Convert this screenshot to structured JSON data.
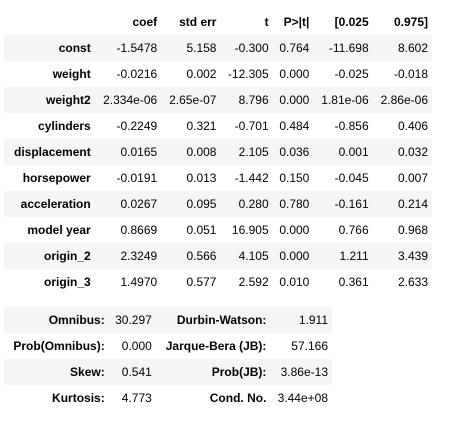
{
  "coef_table": {
    "headers": [
      "",
      "coef",
      "std err",
      "t",
      "P>|t|",
      "[0.025",
      "0.975]"
    ],
    "rows": [
      {
        "name": "const",
        "coef": "-1.5478",
        "std_err": "5.158",
        "t": "-0.300",
        "p": "0.764",
        "ci_low": "-11.698",
        "ci_high": "8.602"
      },
      {
        "name": "weight",
        "coef": "-0.0216",
        "std_err": "0.002",
        "t": "-12.305",
        "p": "0.000",
        "ci_low": "-0.025",
        "ci_high": "-0.018"
      },
      {
        "name": "weight2",
        "coef": "2.334e-06",
        "std_err": "2.65e-07",
        "t": "8.796",
        "p": "0.000",
        "ci_low": "1.81e-06",
        "ci_high": "2.86e-06"
      },
      {
        "name": "cylinders",
        "coef": "-0.2249",
        "std_err": "0.321",
        "t": "-0.701",
        "p": "0.484",
        "ci_low": "-0.856",
        "ci_high": "0.406"
      },
      {
        "name": "displacement",
        "coef": "0.0165",
        "std_err": "0.008",
        "t": "2.105",
        "p": "0.036",
        "ci_low": "0.001",
        "ci_high": "0.032"
      },
      {
        "name": "horsepower",
        "coef": "-0.0191",
        "std_err": "0.013",
        "t": "-1.442",
        "p": "0.150",
        "ci_low": "-0.045",
        "ci_high": "0.007"
      },
      {
        "name": "acceleration",
        "coef": "0.0267",
        "std_err": "0.095",
        "t": "0.280",
        "p": "0.780",
        "ci_low": "-0.161",
        "ci_high": "0.214"
      },
      {
        "name": "model year",
        "coef": "0.8669",
        "std_err": "0.051",
        "t": "16.905",
        "p": "0.000",
        "ci_low": "0.766",
        "ci_high": "0.968"
      },
      {
        "name": "origin_2",
        "coef": "2.3249",
        "std_err": "0.566",
        "t": "4.105",
        "p": "0.000",
        "ci_low": "1.211",
        "ci_high": "3.439"
      },
      {
        "name": "origin_3",
        "coef": "1.4970",
        "std_err": "0.577",
        "t": "2.592",
        "p": "0.010",
        "ci_low": "0.361",
        "ci_high": "2.633"
      }
    ]
  },
  "stats_table": {
    "rows": [
      {
        "label1": "Omnibus:",
        "value1": "30.297",
        "label2": "Durbin-Watson:",
        "value2": "1.911"
      },
      {
        "label1": "Prob(Omnibus):",
        "value1": "0.000",
        "label2": "Jarque-Bera (JB):",
        "value2": "57.166"
      },
      {
        "label1": "Skew:",
        "value1": "0.541",
        "label2": "Prob(JB):",
        "value2": "3.86e-13"
      },
      {
        "label1": "Kurtosis:",
        "value1": "4.773",
        "label2": "Cond. No.",
        "value2": "3.44e+08"
      }
    ]
  }
}
